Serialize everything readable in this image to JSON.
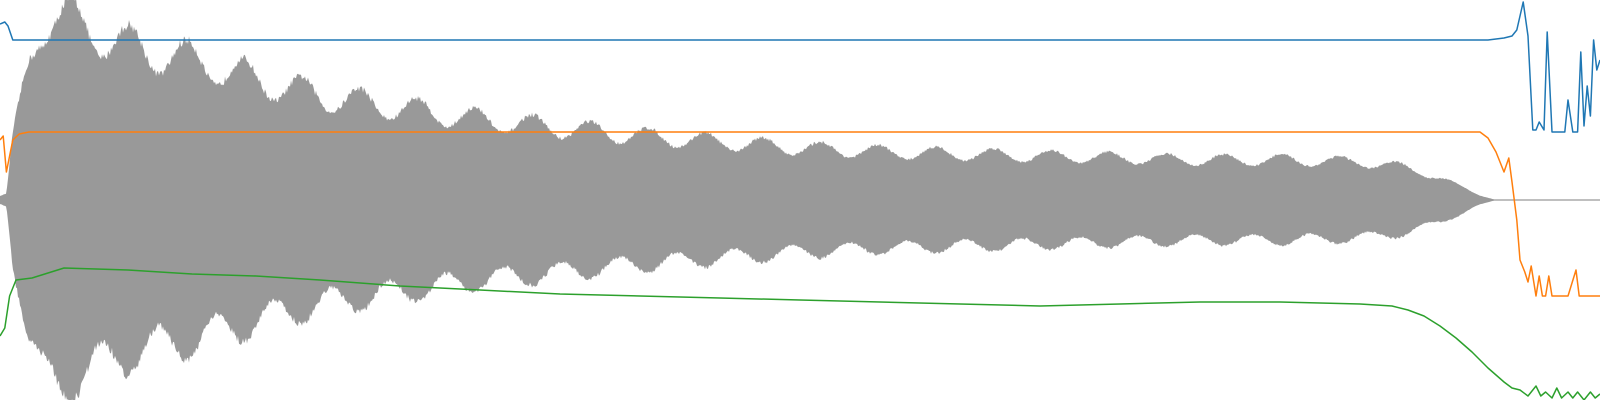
{
  "chart_data": {
    "type": "line",
    "title": "",
    "xlabel": "",
    "ylabel": "",
    "grid": false,
    "legend": "none",
    "x_range": [
      0,
      1
    ],
    "y_range": [
      -1,
      1
    ],
    "waveform": {
      "color": "#999999",
      "envelope": {
        "t": [
          0.0,
          0.004,
          0.008,
          0.012,
          0.018,
          0.024,
          0.03,
          0.04,
          0.055,
          0.075,
          0.1,
          0.13,
          0.16,
          0.2,
          0.25,
          0.3,
          0.35,
          0.4,
          0.45,
          0.5,
          0.55,
          0.6,
          0.65,
          0.7,
          0.75,
          0.8,
          0.85,
          0.88,
          0.9,
          0.915,
          0.925,
          0.935,
          1.0
        ],
        "amplitude": [
          0.02,
          0.03,
          0.3,
          0.45,
          0.7,
          0.86,
          0.92,
          0.9,
          0.86,
          0.78,
          0.73,
          0.68,
          0.6,
          0.52,
          0.46,
          0.4,
          0.36,
          0.32,
          0.29,
          0.26,
          0.24,
          0.23,
          0.22,
          0.21,
          0.2,
          0.2,
          0.19,
          0.16,
          0.11,
          0.06,
          0.025,
          0.0,
          0.0
        ]
      },
      "wobble_period": 0.036,
      "wobble_depth": 0.14
    },
    "series": [
      {
        "color": "#1f77b4",
        "x": [
          0.0,
          0.003,
          0.005,
          0.008,
          0.012,
          0.02,
          0.1,
          0.2,
          0.3,
          0.4,
          0.5,
          0.6,
          0.7,
          0.8,
          0.9,
          0.93,
          0.94,
          0.945,
          0.948,
          0.952,
          0.955,
          0.958,
          0.96,
          0.962,
          0.965,
          0.967,
          0.97,
          0.973,
          0.975,
          0.978,
          0.98,
          0.983,
          0.986,
          0.988,
          0.99,
          0.992,
          0.994,
          0.996,
          0.998,
          1.0
        ],
        "y": [
          0.88,
          0.89,
          0.87,
          0.8,
          0.8,
          0.8,
          0.8,
          0.8,
          0.8,
          0.8,
          0.8,
          0.8,
          0.8,
          0.8,
          0.8,
          0.8,
          0.81,
          0.82,
          0.85,
          0.99,
          0.82,
          0.35,
          0.35,
          0.39,
          0.35,
          0.84,
          0.34,
          0.34,
          0.34,
          0.34,
          0.5,
          0.34,
          0.34,
          0.74,
          0.37,
          0.57,
          0.42,
          0.8,
          0.65,
          0.7
        ]
      },
      {
        "color": "#ff7f0e",
        "x": [
          0.0,
          0.002,
          0.004,
          0.008,
          0.012,
          0.018,
          0.05,
          0.2,
          0.4,
          0.6,
          0.8,
          0.9,
          0.925,
          0.93,
          0.935,
          0.94,
          0.943,
          0.945,
          0.948,
          0.95,
          0.953,
          0.955,
          0.957,
          0.96,
          0.962,
          0.964,
          0.966,
          0.968,
          0.97,
          0.972,
          0.975,
          0.98,
          0.985,
          0.987,
          0.99,
          1.0
        ],
        "y": [
          0.3,
          0.32,
          0.14,
          0.3,
          0.33,
          0.34,
          0.34,
          0.34,
          0.34,
          0.34,
          0.34,
          0.34,
          0.34,
          0.31,
          0.24,
          0.14,
          0.21,
          0.09,
          -0.1,
          -0.3,
          -0.36,
          -0.41,
          -0.33,
          -0.48,
          -0.38,
          -0.48,
          -0.48,
          -0.38,
          -0.48,
          -0.48,
          -0.48,
          -0.48,
          -0.35,
          -0.48,
          -0.48,
          -0.48
        ]
      },
      {
        "color": "#2ca02c",
        "x": [
          0.0,
          0.003,
          0.006,
          0.01,
          0.02,
          0.04,
          0.08,
          0.12,
          0.16,
          0.2,
          0.25,
          0.3,
          0.35,
          0.4,
          0.45,
          0.5,
          0.55,
          0.6,
          0.65,
          0.7,
          0.75,
          0.8,
          0.85,
          0.87,
          0.88,
          0.89,
          0.9,
          0.91,
          0.92,
          0.93,
          0.94,
          0.945,
          0.95,
          0.955,
          0.96,
          0.963,
          0.966,
          0.97,
          0.973,
          0.976,
          0.98,
          0.983,
          0.986,
          0.99,
          0.994,
          0.997,
          1.0
        ],
        "y": [
          -0.68,
          -0.64,
          -0.48,
          -0.4,
          -0.39,
          -0.34,
          -0.35,
          -0.37,
          -0.38,
          -0.4,
          -0.43,
          -0.45,
          -0.47,
          -0.48,
          -0.49,
          -0.5,
          -0.51,
          -0.52,
          -0.53,
          -0.52,
          -0.51,
          -0.51,
          -0.52,
          -0.53,
          -0.55,
          -0.58,
          -0.63,
          -0.69,
          -0.76,
          -0.84,
          -0.91,
          -0.94,
          -0.95,
          -0.98,
          -0.93,
          -0.98,
          -0.96,
          -0.99,
          -0.94,
          -0.99,
          -0.96,
          -0.99,
          -0.96,
          -1.0,
          -0.96,
          -0.99,
          -0.97
        ]
      }
    ],
    "center_line": {
      "color": "#999999",
      "x_start": 0.93,
      "x_end": 1.0,
      "y": 0
    }
  }
}
